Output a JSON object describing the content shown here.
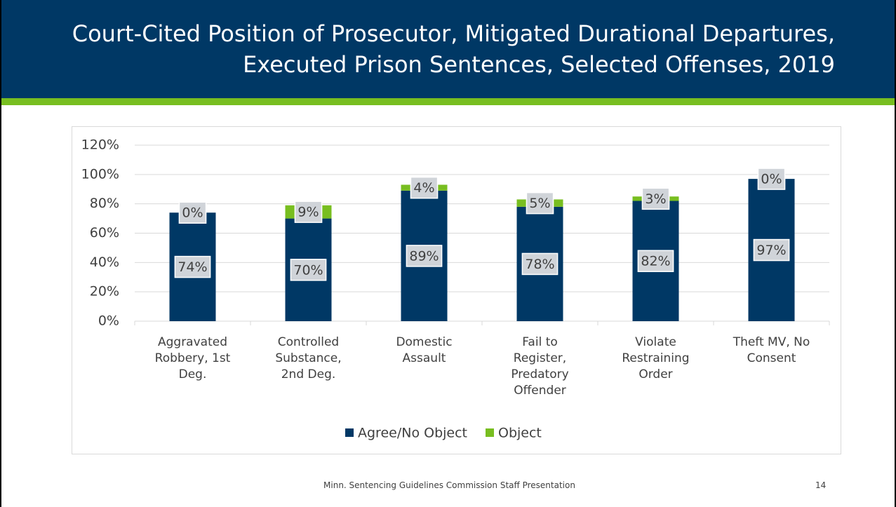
{
  "header": {
    "title": "Court-Cited Position of Prosecutor, Mitigated Durational Departures, Executed Prison Sentences, Selected Offenses, 2019"
  },
  "chart_data": {
    "type": "stacked_bar",
    "categories": [
      "Aggravated Robbery, 1st Deg.",
      "Controlled Substance, 2nd Deg.",
      "Domestic Assault",
      "Fail to Register, Predatory Offender",
      "Violate Restraining Order",
      "Theft MV, No Consent"
    ],
    "series": [
      {
        "name": "Agree/No Object",
        "color": "#003865",
        "values": [
          74,
          70,
          89,
          78,
          82,
          97
        ],
        "value_labels": [
          "74%",
          "70%",
          "89%",
          "78%",
          "82%",
          "97%"
        ]
      },
      {
        "name": "Object",
        "color": "#78be20",
        "values": [
          0,
          9,
          4,
          5,
          3,
          0
        ],
        "value_labels": [
          "0%",
          "9%",
          "4%",
          "5%",
          "3%",
          "0%"
        ]
      }
    ],
    "ylim": [
      0,
      120
    ],
    "yticks": [
      {
        "value": 0,
        "label": "0%"
      },
      {
        "value": 20,
        "label": "20%"
      },
      {
        "value": 40,
        "label": "40%"
      },
      {
        "value": 60,
        "label": "60%"
      },
      {
        "value": 80,
        "label": "80%"
      },
      {
        "value": 100,
        "label": "100%"
      },
      {
        "value": 120,
        "label": "120%"
      }
    ],
    "grid": true,
    "legend": "bottom"
  },
  "footer": {
    "text": "Minn. Sentencing Guidelines Commission Staff Presentation",
    "page": "14"
  }
}
